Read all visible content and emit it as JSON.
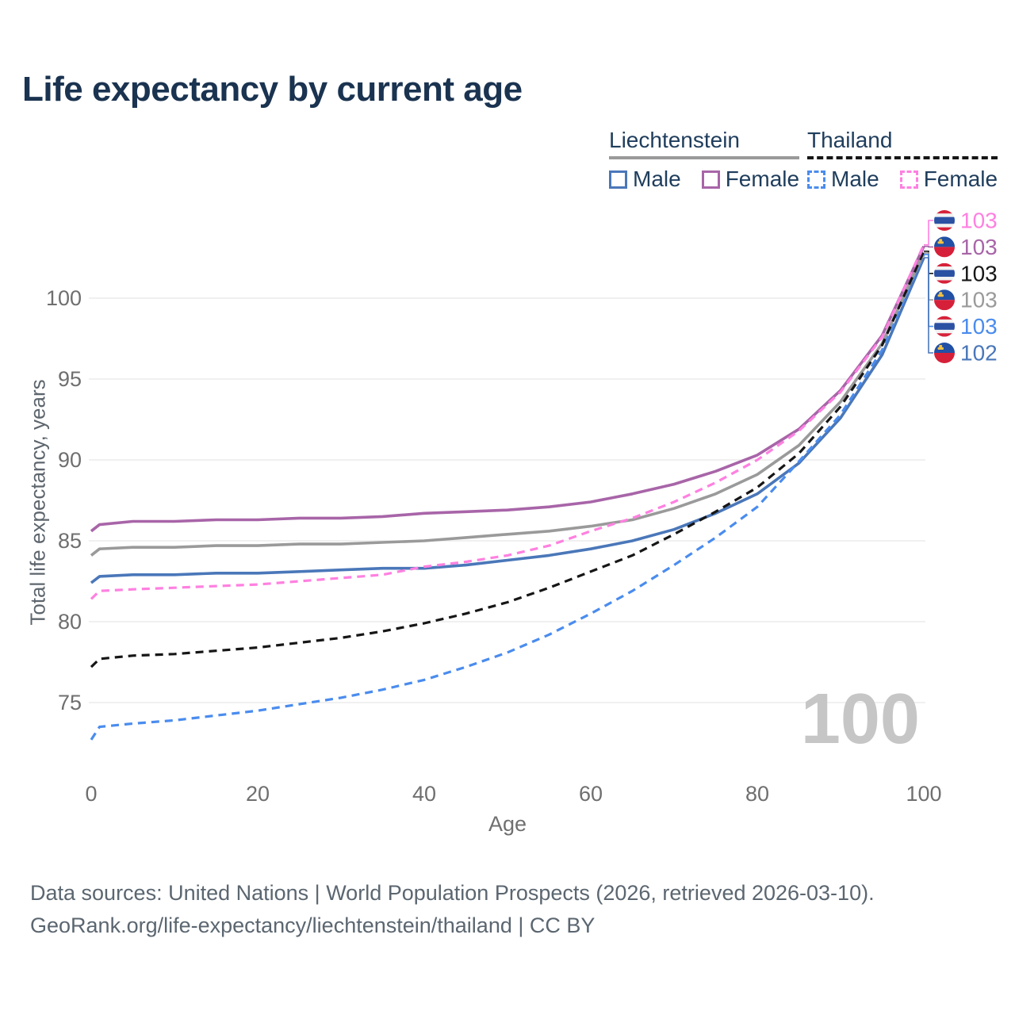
{
  "title": "Life expectancy by current age",
  "legend": {
    "groups": [
      {
        "name": "Liechtenstein",
        "line_style": "solid",
        "underline_color": "#9a9a9a",
        "items": [
          {
            "label": "Male",
            "series_key": "liechtenstein-male"
          },
          {
            "label": "Female",
            "series_key": "liechtenstein-female"
          }
        ]
      },
      {
        "name": "Thailand",
        "line_style": "dashed",
        "underline_color": "#161616",
        "items": [
          {
            "label": "Male",
            "series_key": "thailand-male"
          },
          {
            "label": "Female",
            "series_key": "thailand-female"
          }
        ]
      }
    ]
  },
  "chart_data": {
    "type": "line",
    "title": "Life expectancy by current age",
    "xlabel": "Age",
    "ylabel": "Total life expectancy, years",
    "xticks": [
      0,
      20,
      40,
      60,
      80,
      100
    ],
    "yticks": [
      75,
      80,
      85,
      90,
      95,
      100
    ],
    "xlim": [
      0,
      100
    ],
    "ylim": [
      72,
      104
    ],
    "grid": "horizontal",
    "legend_position": "top-right",
    "watermark": "100",
    "x": [
      0,
      1,
      5,
      10,
      15,
      20,
      25,
      30,
      35,
      40,
      45,
      50,
      55,
      60,
      65,
      70,
      75,
      80,
      85,
      90,
      95,
      100
    ],
    "series": [
      {
        "key": "thailand-female",
        "name": "Thailand Female",
        "country": "Thailand",
        "sex": "Female",
        "line_style": "dashed",
        "color": "#ff80e0",
        "flag": "thailand",
        "end_label": "103",
        "values": [
          81.4,
          81.9,
          82.0,
          82.1,
          82.2,
          82.3,
          82.5,
          82.7,
          82.9,
          83.4,
          83.7,
          84.1,
          84.7,
          85.6,
          86.4,
          87.4,
          88.6,
          90.0,
          91.8,
          94.2,
          97.6,
          103.3
        ]
      },
      {
        "key": "liechtenstein-female",
        "name": "Liechtenstein Female",
        "country": "Liechtenstein",
        "sex": "Female",
        "line_style": "solid",
        "color": "#a865a8",
        "flag": "liechtenstein",
        "end_label": "103",
        "values": [
          85.6,
          86.0,
          86.2,
          86.2,
          86.3,
          86.3,
          86.4,
          86.4,
          86.5,
          86.7,
          86.8,
          86.9,
          87.1,
          87.4,
          87.9,
          88.5,
          89.3,
          90.3,
          91.9,
          94.3,
          97.7,
          103.2
        ]
      },
      {
        "key": "thailand-all",
        "name": "Thailand (both sexes)",
        "country": "Thailand",
        "sex": "Both",
        "line_style": "dashed",
        "color": "#161616",
        "flag": "thailand",
        "end_label": "103",
        "values": [
          77.2,
          77.7,
          77.9,
          78.0,
          78.2,
          78.4,
          78.7,
          79.0,
          79.4,
          79.9,
          80.5,
          81.2,
          82.1,
          83.1,
          84.1,
          85.4,
          86.8,
          88.3,
          90.4,
          93.3,
          97.1,
          102.9
        ]
      },
      {
        "key": "liechtenstein-all",
        "name": "Liechtenstein (both sexes)",
        "country": "Liechtenstein",
        "sex": "Both",
        "line_style": "solid",
        "color": "#9a9a9a",
        "flag": "liechtenstein",
        "end_label": "103",
        "values": [
          84.1,
          84.5,
          84.6,
          84.6,
          84.7,
          84.7,
          84.8,
          84.8,
          84.9,
          85.0,
          85.2,
          85.4,
          85.6,
          85.9,
          86.3,
          87.0,
          87.9,
          89.1,
          90.9,
          93.6,
          97.2,
          102.8
        ]
      },
      {
        "key": "thailand-male",
        "name": "Thailand Male",
        "country": "Thailand",
        "sex": "Male",
        "line_style": "dashed",
        "color": "#4a8cee",
        "flag": "thailand",
        "end_label": "103",
        "values": [
          72.7,
          73.5,
          73.7,
          73.9,
          74.2,
          74.5,
          74.9,
          75.3,
          75.8,
          76.4,
          77.2,
          78.1,
          79.2,
          80.5,
          81.9,
          83.5,
          85.2,
          87.1,
          89.9,
          92.8,
          96.8,
          102.7
        ]
      },
      {
        "key": "liechtenstein-male",
        "name": "Liechtenstein Male",
        "country": "Liechtenstein",
        "sex": "Male",
        "line_style": "solid",
        "color": "#4a77b9",
        "flag": "liechtenstein",
        "end_label": "102",
        "values": [
          82.4,
          82.8,
          82.9,
          82.9,
          83.0,
          83.0,
          83.1,
          83.2,
          83.3,
          83.3,
          83.5,
          83.8,
          84.1,
          84.5,
          85.0,
          85.7,
          86.7,
          87.9,
          89.8,
          92.6,
          96.5,
          102.5
        ]
      }
    ],
    "flag_colors": {
      "thailand_red": "#d62239",
      "thailand_white": "#f2f2f2",
      "thailand_blue": "#2b51a3",
      "liechtenstein_blue": "#2150a5",
      "liechtenstein_red": "#d62039",
      "liechtenstein_gold": "#f5c242"
    }
  },
  "style_colors": {
    "title": "#1a3350",
    "legend_text": "#1f3d5c",
    "tick_text": "#6f6f6f",
    "gridline": "#ececec",
    "watermark": "#c6c6c6",
    "footer_text": "#5b6670"
  },
  "footer": {
    "line1": "Data sources: United Nations | World Population Prospects (2026, retrieved 2026-03-10).",
    "line2": "GeoRank.org/life-expectancy/liechtenstein/thailand | CC BY"
  }
}
